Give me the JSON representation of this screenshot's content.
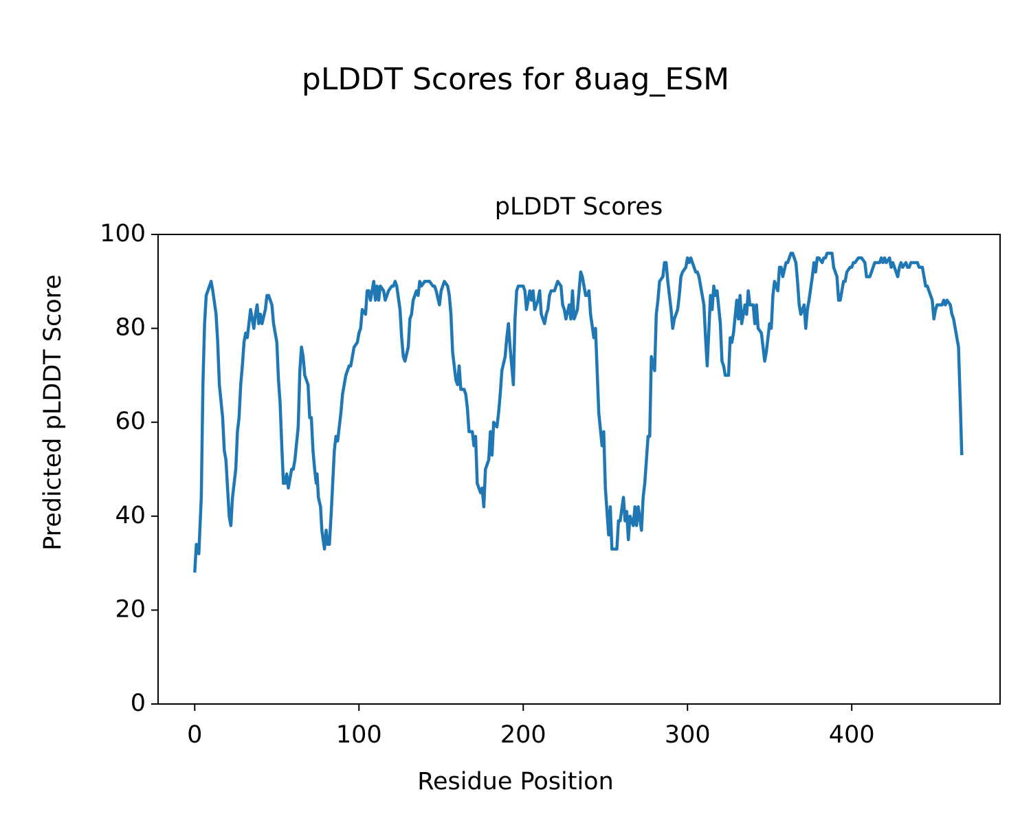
{
  "chart_data": {
    "type": "line",
    "suptitle": "pLDDT Scores for 8uag_ESM",
    "title": "pLDDT Scores",
    "x_label": "Residue Position",
    "y_label": "Predicted pLDDT Score",
    "xlim": [
      -22.3,
      490.3
    ],
    "ylim": [
      0,
      100
    ],
    "xticks": [
      0,
      100,
      200,
      300,
      400
    ],
    "yticks": [
      0,
      20,
      40,
      60,
      80,
      100
    ],
    "grid": false,
    "x": [
      0,
      1,
      2.5,
      4,
      5,
      6,
      7,
      9,
      10,
      11,
      13,
      14,
      15,
      17,
      18,
      19,
      20,
      21,
      22,
      23,
      25,
      26,
      27,
      28,
      29,
      30,
      31,
      32,
      33,
      34,
      36,
      37,
      38,
      39,
      40,
      41,
      43,
      44,
      45,
      47,
      48,
      50,
      51,
      52,
      53,
      54,
      55,
      56,
      57,
      59,
      60,
      61,
      63,
      64,
      65,
      66,
      67,
      69,
      70,
      71,
      72,
      73,
      74,
      74.5,
      75.3,
      76.6,
      77.4,
      79,
      80,
      81,
      82,
      83,
      84,
      85,
      86,
      87,
      89,
      90,
      91,
      92,
      94,
      95,
      96,
      97,
      99,
      100,
      101,
      102,
      104,
      105,
      106,
      107,
      109,
      110,
      111,
      112,
      113,
      115,
      116,
      117,
      118,
      120,
      121,
      122,
      123,
      125,
      126,
      127,
      128,
      130,
      131,
      132,
      133,
      135,
      136,
      137,
      138,
      140,
      141,
      142,
      143,
      145,
      146,
      147,
      149,
      150,
      151,
      152,
      154,
      155,
      156,
      157,
      159,
      160,
      161,
      162,
      164,
      165,
      166,
      167,
      169,
      170,
      171,
      172,
      174,
      175,
      176,
      177,
      179,
      180,
      181,
      182,
      184,
      185,
      186,
      187,
      189,
      190,
      191,
      192,
      194,
      195,
      196,
      197,
      199,
      200,
      201,
      202,
      204,
      205,
      206,
      207,
      209,
      210,
      211,
      213,
      214,
      215,
      216,
      217,
      219,
      220,
      221,
      223,
      224,
      225,
      226,
      228,
      229,
      230,
      231,
      233,
      234,
      235,
      236,
      238,
      239,
      240,
      241,
      243,
      244,
      245,
      246,
      248,
      249,
      250,
      251,
      252,
      253,
      254,
      256,
      257,
      258,
      259,
      261,
      262,
      263,
      264,
      265,
      267,
      268,
      269,
      270,
      272,
      273,
      274,
      276,
      277,
      278,
      280,
      281,
      282,
      283,
      285,
      286,
      287,
      288,
      290,
      291,
      292,
      294,
      295,
      296,
      297,
      299,
      300,
      301,
      302,
      304,
      305,
      306,
      307,
      309,
      310,
      311,
      312,
      314,
      315,
      316,
      317,
      318,
      320,
      321,
      322,
      323,
      325,
      326,
      327,
      328,
      330,
      331,
      332,
      333,
      335,
      336,
      337,
      338,
      340,
      341,
      342,
      343,
      345,
      346,
      347,
      348,
      350,
      351,
      352,
      353,
      355,
      356,
      357,
      358,
      360,
      361,
      362,
      363,
      364,
      366,
      367,
      368,
      369,
      371,
      372,
      373,
      374,
      376,
      377,
      378,
      379,
      380,
      382,
      383,
      384,
      385,
      387,
      388,
      389,
      391,
      392,
      393,
      395,
      396,
      397,
      399,
      400,
      401,
      402,
      404,
      405,
      406,
      408,
      409,
      410,
      411,
      413,
      414,
      415,
      417,
      418,
      419,
      420,
      421,
      423,
      424,
      425,
      426,
      428,
      429,
      430,
      431,
      433,
      434,
      435,
      436,
      438,
      439,
      440,
      441,
      443,
      444,
      445,
      446,
      447,
      449,
      450,
      451,
      452,
      453,
      455,
      456,
      457,
      458,
      460,
      461,
      462,
      463,
      465,
      466,
      467
    ],
    "series": [
      {
        "name": "pLDDT",
        "color": "#1f77b4",
        "values": [
          28,
          34,
          32,
          44,
          68,
          81,
          87,
          89,
          90,
          88,
          83,
          77,
          68,
          61,
          54,
          52,
          46,
          40,
          38,
          44,
          50,
          58,
          61,
          68,
          72,
          77,
          79,
          78,
          81,
          84,
          80,
          83,
          85,
          81,
          83,
          81,
          84,
          87,
          87,
          85,
          81,
          77,
          69,
          64,
          55,
          47,
          47,
          49,
          46,
          50,
          50,
          52,
          59,
          71,
          76,
          74,
          70,
          68,
          61,
          61,
          54,
          50,
          47,
          49,
          44,
          42,
          37,
          33,
          37,
          34,
          34,
          40,
          47,
          54,
          57,
          56,
          62,
          66,
          68,
          70,
          72,
          72,
          74,
          76,
          77,
          79,
          80,
          84,
          83,
          88,
          88,
          86,
          90,
          86,
          89,
          86,
          89,
          88,
          86,
          87,
          88,
          89,
          89,
          90,
          89,
          84,
          78,
          74,
          73,
          76,
          82,
          83,
          86,
          88,
          87,
          90,
          89,
          90,
          90,
          90,
          90,
          89,
          89,
          88,
          85,
          88,
          89,
          90,
          89,
          87,
          83,
          75,
          69,
          68,
          72,
          67,
          67,
          66,
          63,
          58,
          58,
          55,
          57,
          47,
          45,
          46,
          42,
          50,
          52,
          58,
          53,
          60,
          59,
          62,
          66,
          71,
          74,
          78,
          81,
          76,
          68,
          82,
          88,
          89,
          89,
          89,
          88,
          84,
          88,
          86,
          88,
          84,
          86,
          88,
          83,
          81,
          83,
          84,
          87,
          88,
          88,
          89,
          90,
          89,
          85,
          84,
          82,
          85,
          82,
          88,
          82,
          84,
          88,
          92,
          91,
          87,
          87,
          88,
          83,
          78,
          80,
          71,
          62,
          55,
          58,
          46,
          41,
          36,
          42,
          33,
          33,
          33,
          39,
          39,
          44,
          39,
          41,
          35,
          40,
          38,
          42,
          38,
          42,
          37,
          44,
          47,
          57,
          57,
          74,
          71,
          83,
          86,
          90,
          91,
          94,
          94,
          90,
          84,
          80,
          82,
          84,
          87,
          91,
          92,
          93,
          95,
          94,
          95,
          93,
          92,
          92,
          91,
          87,
          85,
          78,
          72,
          87,
          84,
          89,
          87,
          88,
          81,
          73,
          72,
          70,
          70,
          78,
          77,
          79,
          86,
          82,
          87,
          81,
          85,
          83,
          88,
          85,
          85,
          81,
          85,
          80,
          79,
          76,
          73,
          75,
          81,
          80,
          87,
          90,
          88,
          93,
          93,
          91,
          94,
          94,
          95,
          96,
          96,
          94,
          90,
          85,
          83,
          85,
          80,
          84,
          86,
          91,
          94,
          92,
          95,
          95,
          94,
          95,
          95,
          96,
          96,
          96,
          93,
          91,
          86,
          86,
          90,
          90,
          92,
          93,
          93,
          94,
          94,
          95,
          95,
          95,
          94,
          91,
          91,
          91,
          93,
          94,
          94,
          94,
          95,
          94,
          95,
          94,
          95,
          93,
          94,
          93,
          91,
          93,
          94,
          93,
          94,
          93,
          93,
          94,
          94,
          94,
          94,
          93,
          93,
          91,
          89,
          89,
          88,
          86,
          82,
          84,
          85,
          85,
          85,
          86,
          85,
          86,
          85,
          83,
          82,
          80,
          76,
          65,
          53
        ]
      }
    ]
  }
}
